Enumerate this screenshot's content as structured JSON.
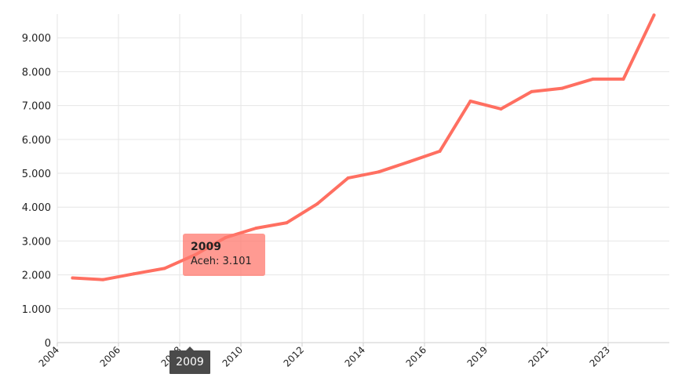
{
  "chart_data": {
    "type": "line",
    "title": "",
    "xlabel": "",
    "ylabel": "",
    "x": [
      2004.5,
      2005.5,
      2006.5,
      2007.5,
      2008.5,
      2009.5,
      2010.5,
      2011.5,
      2012.5,
      2013.5,
      2014.5,
      2015.5,
      2016.5,
      2017.5,
      2018.5,
      2019.5,
      2020.5,
      2021.5,
      2022.5,
      2023.5
    ],
    "series": [
      {
        "name": "Aceh",
        "color": "#ff6f61",
        "values": [
          1910,
          1860,
          2030,
          2190,
          2590,
          3101,
          3380,
          3540,
          4100,
          4860,
          5040,
          5340,
          5650,
          7130,
          6900,
          7410,
          7510,
          7780,
          7780,
          9670
        ]
      }
    ],
    "x_ticks": [
      "2004",
      "2006",
      "2008",
      "2010",
      "2012",
      "2014",
      "2016",
      "2019",
      "2021",
      "2023"
    ],
    "y_ticks": [
      "0",
      "1.000",
      "2.000",
      "3.000",
      "4.000",
      "5.000",
      "6.000",
      "7.000",
      "8.000",
      "9.000"
    ],
    "ylim": [
      0,
      9700
    ],
    "grid": true,
    "legend": "none"
  },
  "tooltip": {
    "title": "2009",
    "body": "Aceh: 3.101"
  },
  "crosshair_label": "2009"
}
